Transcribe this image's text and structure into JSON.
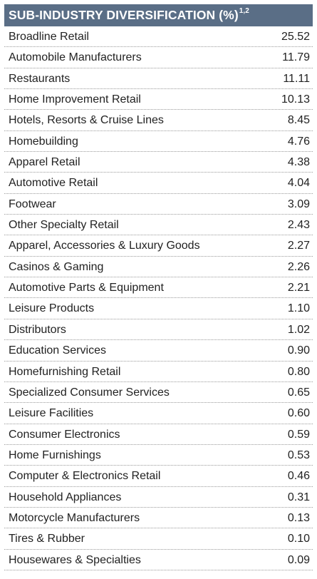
{
  "table": {
    "title": "SUB-INDUSTRY DIVERSIFICATION (%)",
    "title_superscript": "1,2",
    "header_color": "#5a6e86",
    "rows": [
      {
        "label": "Broadline Retail",
        "value": "25.52"
      },
      {
        "label": "Automobile Manufacturers",
        "value": "11.79"
      },
      {
        "label": "Restaurants",
        "value": "11.11"
      },
      {
        "label": "Home Improvement Retail",
        "value": "10.13"
      },
      {
        "label": "Hotels, Resorts & Cruise Lines",
        "value": "8.45"
      },
      {
        "label": "Homebuilding",
        "value": "4.76"
      },
      {
        "label": "Apparel Retail",
        "value": "4.38"
      },
      {
        "label": "Automotive Retail",
        "value": "4.04"
      },
      {
        "label": "Footwear",
        "value": "3.09"
      },
      {
        "label": "Other Specialty Retail",
        "value": "2.43"
      },
      {
        "label": "Apparel, Accessories & Luxury Goods",
        "value": "2.27"
      },
      {
        "label": "Casinos & Gaming",
        "value": "2.26"
      },
      {
        "label": "Automotive Parts & Equipment",
        "value": "2.21"
      },
      {
        "label": "Leisure Products",
        "value": "1.10"
      },
      {
        "label": "Distributors",
        "value": "1.02"
      },
      {
        "label": "Education Services",
        "value": "0.90"
      },
      {
        "label": "Homefurnishing Retail",
        "value": "0.80"
      },
      {
        "label": "Specialized Consumer Services",
        "value": "0.65"
      },
      {
        "label": "Leisure Facilities",
        "value": "0.60"
      },
      {
        "label": "Consumer Electronics",
        "value": "0.59"
      },
      {
        "label": "Home Furnishings",
        "value": "0.53"
      },
      {
        "label": "Computer & Electronics Retail",
        "value": "0.46"
      },
      {
        "label": "Household Appliances",
        "value": "0.31"
      },
      {
        "label": "Motorcycle Manufacturers",
        "value": "0.13"
      },
      {
        "label": "Tires & Rubber",
        "value": "0.10"
      },
      {
        "label": "Housewares & Specialties",
        "value": "0.09"
      }
    ]
  }
}
